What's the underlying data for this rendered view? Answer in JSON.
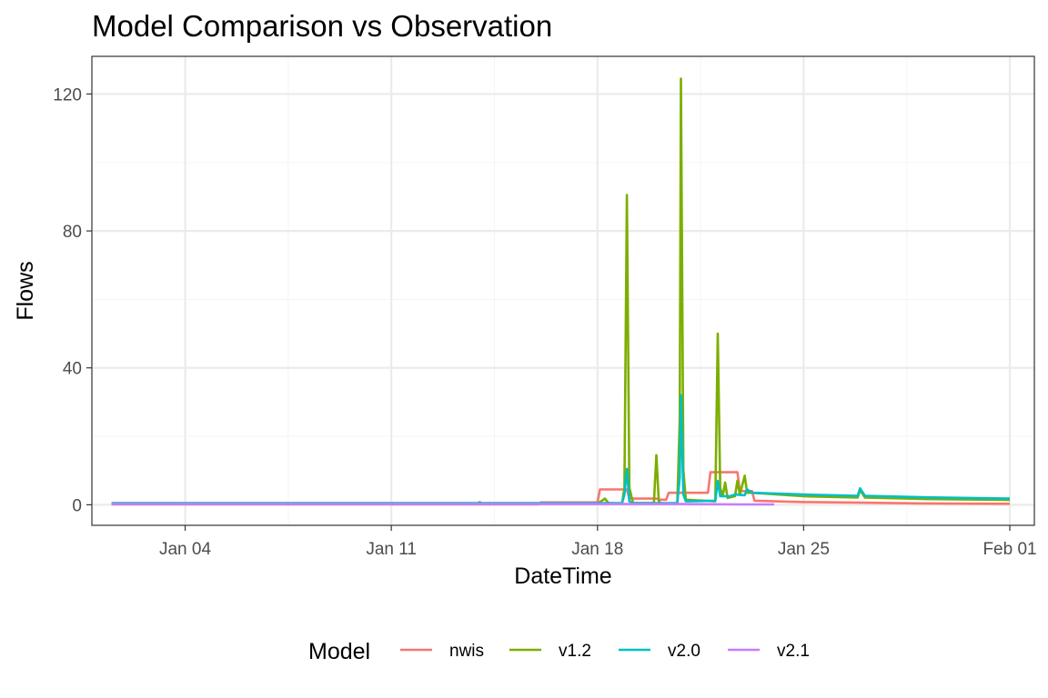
{
  "colors": {
    "nwis": "#F8766D",
    "v1.2": "#7CAE00",
    "v2.0": "#00BFC4",
    "v2.1": "#C77CFF",
    "grid_major": "#ebebeb",
    "grid_minor": "#f5f5f5",
    "panel_border": "#333333"
  },
  "chart_data": {
    "type": "line",
    "title": "Model Comparison vs Observation",
    "xlabel": "DateTime",
    "ylabel": "Flows",
    "x_axis_type": "date",
    "xlim": [
      "2024-12-31T20:00",
      "2025-02-01T20:00"
    ],
    "ylim": [
      -6,
      131
    ],
    "x_ticks": [
      "2025-01-04",
      "2025-01-11",
      "2025-01-18",
      "2025-01-25",
      "2025-02-01"
    ],
    "x_tick_labels": [
      "Jan 04",
      "Jan 11",
      "Jan 18",
      "Jan 25",
      "Feb 01"
    ],
    "y_ticks": [
      0,
      40,
      80,
      120
    ],
    "y_tick_labels": [
      "0",
      "40",
      "80",
      "120"
    ],
    "grid": true,
    "legend": {
      "title": "Model",
      "position": "bottom",
      "entries": [
        "nwis",
        "v1.2",
        "v2.0",
        "v2.1"
      ]
    },
    "series": [
      {
        "name": "nwis",
        "color_key": "nwis",
        "points": [
          [
            "2025-01-01T12:00",
            0.1
          ],
          [
            "2025-01-16T00:00",
            0.1
          ],
          [
            "2025-01-16T02:00",
            0.7
          ],
          [
            "2025-01-18T00:00",
            0.7
          ],
          [
            "2025-01-18T02:00",
            4.5
          ],
          [
            "2025-01-19T00:00",
            4.5
          ],
          [
            "2025-01-19T02:00",
            1.8
          ],
          [
            "2025-01-20T00:00",
            1.8
          ],
          [
            "2025-01-20T02:00",
            1.5
          ],
          [
            "2025-01-20T08:00",
            1.5
          ],
          [
            "2025-01-20T10:00",
            3.5
          ],
          [
            "2025-01-21T18:00",
            3.5
          ],
          [
            "2025-01-21T20:00",
            9.5
          ],
          [
            "2025-01-22T18:00",
            9.5
          ],
          [
            "2025-01-22T20:00",
            4.0
          ],
          [
            "2025-01-23T06:00",
            4.0
          ],
          [
            "2025-01-23T08:00",
            1.2
          ],
          [
            "2025-01-25T00:00",
            0.8
          ],
          [
            "2025-01-27T00:00",
            0.6
          ],
          [
            "2025-01-29T00:00",
            0.4
          ],
          [
            "2025-01-31T12:00",
            0.3
          ],
          [
            "2025-02-01T00:00",
            0.3
          ]
        ]
      },
      {
        "name": "v1.2",
        "color_key": "v1.2",
        "points": [
          [
            "2025-01-01T12:00",
            0.3
          ],
          [
            "2025-01-13T22:00",
            0.3
          ],
          [
            "2025-01-14T00:00",
            0.8
          ],
          [
            "2025-01-14T02:00",
            0.3
          ],
          [
            "2025-01-18T00:00",
            0.3
          ],
          [
            "2025-01-18T06:00",
            1.8
          ],
          [
            "2025-01-18T09:00",
            0.5
          ],
          [
            "2025-01-18T20:00",
            0.4
          ],
          [
            "2025-01-18T22:00",
            5.0
          ],
          [
            "2025-01-19T00:00",
            90.5
          ],
          [
            "2025-01-19T02:00",
            5.0
          ],
          [
            "2025-01-19T05:00",
            0.5
          ],
          [
            "2025-01-19T22:00",
            0.5
          ],
          [
            "2025-01-20T00:00",
            14.5
          ],
          [
            "2025-01-20T02:00",
            1.0
          ],
          [
            "2025-01-20T04:00",
            0.3
          ],
          [
            "2025-01-20T17:00",
            0.3
          ],
          [
            "2025-01-20T19:00",
            25.0
          ],
          [
            "2025-01-20T20:00",
            124.5
          ],
          [
            "2025-01-20T22:00",
            10.0
          ],
          [
            "2025-01-21T00:00",
            1.5
          ],
          [
            "2025-01-22T00:00",
            1.0
          ],
          [
            "2025-01-22T02:00",
            50.0
          ],
          [
            "2025-01-22T04:00",
            5.0
          ],
          [
            "2025-01-22T06:00",
            2.5
          ],
          [
            "2025-01-22T08:00",
            6.5
          ],
          [
            "2025-01-22T10:00",
            2.0
          ],
          [
            "2025-01-22T16:00",
            2.5
          ],
          [
            "2025-01-22T18:00",
            7.0
          ],
          [
            "2025-01-22T20:00",
            3.0
          ],
          [
            "2025-01-23T00:00",
            8.5
          ],
          [
            "2025-01-23T02:00",
            3.5
          ],
          [
            "2025-01-23T06:00",
            3.5
          ],
          [
            "2025-01-25T00:00",
            2.5
          ],
          [
            "2025-01-26T20:00",
            2.1
          ],
          [
            "2025-01-26T22:00",
            4.3
          ],
          [
            "2025-01-27T02:00",
            2.1
          ],
          [
            "2025-01-29T00:00",
            1.7
          ],
          [
            "2025-02-01T00:00",
            1.4
          ]
        ]
      },
      {
        "name": "v2.0",
        "color_key": "v2.0",
        "points": [
          [
            "2025-01-01T12:00",
            0.5
          ],
          [
            "2025-01-18T20:00",
            0.5
          ],
          [
            "2025-01-18T22:00",
            3.0
          ],
          [
            "2025-01-19T00:00",
            10.5
          ],
          [
            "2025-01-19T02:00",
            1.0
          ],
          [
            "2025-01-19T05:00",
            0.5
          ],
          [
            "2025-01-20T17:00",
            0.5
          ],
          [
            "2025-01-20T19:00",
            8.0
          ],
          [
            "2025-01-20T20:00",
            32.0
          ],
          [
            "2025-01-20T22:00",
            3.0
          ],
          [
            "2025-01-21T00:00",
            1.0
          ],
          [
            "2025-01-22T00:00",
            1.2
          ],
          [
            "2025-01-22T02:00",
            7.0
          ],
          [
            "2025-01-22T04:00",
            2.5
          ],
          [
            "2025-01-22T12:00",
            2.5
          ],
          [
            "2025-01-22T16:00",
            3.0
          ],
          [
            "2025-01-23T00:00",
            2.8
          ],
          [
            "2025-01-23T02:00",
            4.5
          ],
          [
            "2025-01-23T06:00",
            3.5
          ],
          [
            "2025-01-25T00:00",
            3.0
          ],
          [
            "2025-01-26T20:00",
            2.6
          ],
          [
            "2025-01-26T22:00",
            4.8
          ],
          [
            "2025-01-27T02:00",
            2.6
          ],
          [
            "2025-01-29T00:00",
            2.2
          ],
          [
            "2025-02-01T00:00",
            1.8
          ]
        ]
      },
      {
        "name": "v2.1",
        "color_key": "v2.1",
        "points": [
          [
            "2025-01-01T12:00",
            0.2
          ],
          [
            "2025-01-18T00:00",
            0.2
          ],
          [
            "2025-01-21T00:00",
            0.2
          ],
          [
            "2025-01-23T00:00",
            0.1
          ],
          [
            "2025-01-24T00:00",
            0.1
          ]
        ]
      }
    ]
  }
}
